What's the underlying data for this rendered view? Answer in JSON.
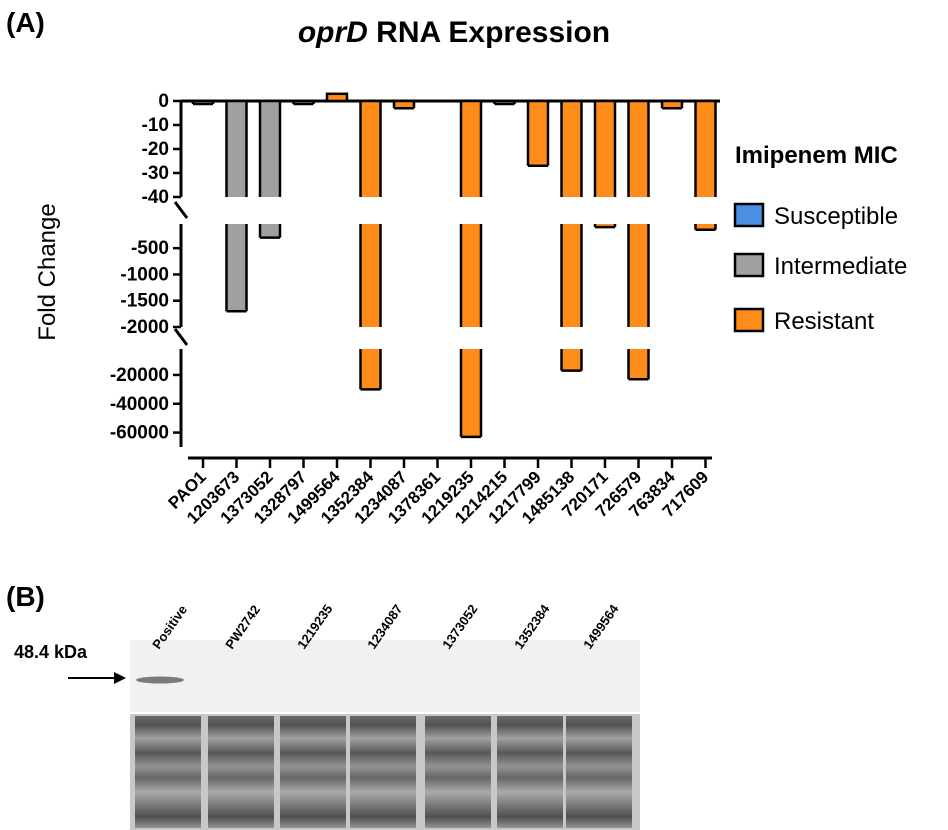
{
  "panel_a": {
    "label": "(A)",
    "title_italic": "oprD",
    "title_rest": " RNA Expression",
    "ylabel": "Fold Change",
    "legend": {
      "title": "Imipenem MIC",
      "items": [
        {
          "label": "Susceptible",
          "color": "#4a90e2"
        },
        {
          "label": "Intermediate",
          "color": "#a0a0a0"
        },
        {
          "label": "Resistant",
          "color": "#ff8c1a"
        }
      ]
    }
  },
  "panel_b": {
    "label": "(B)",
    "marker": "48.4 kDa",
    "lanes": [
      "Positive",
      "PW2742",
      "1219235",
      "1234087",
      "1373052",
      "1352384",
      "1499564"
    ]
  },
  "chart_data": {
    "type": "bar",
    "title": "oprD RNA Expression",
    "ylabel": "Fold Change",
    "categories": [
      "PAO1",
      "1203673",
      "1373052",
      "1328797",
      "1499564",
      "1352384",
      "1234087",
      "1378361",
      "1219235",
      "1214215",
      "1217799",
      "1485138",
      "720171",
      "726579",
      "763834",
      "717609"
    ],
    "values": [
      -1,
      -1700,
      -300,
      -1,
      3,
      -30000,
      -3,
      0,
      -63000,
      -1,
      -27,
      -17000,
      -100,
      -23000,
      -3,
      -150
    ],
    "mic_category": [
      "Intermediate",
      "Intermediate",
      "Intermediate",
      "Intermediate",
      "Resistant",
      "Resistant",
      "Resistant",
      "Resistant",
      "Resistant",
      "Intermediate",
      "Resistant",
      "Resistant",
      "Resistant",
      "Resistant",
      "Resistant",
      "Resistant"
    ],
    "y_axis_segments": [
      {
        "ylim": [
          -40,
          0
        ],
        "ticks": [
          0,
          -10,
          -20,
          -30,
          -40
        ]
      },
      {
        "ylim": [
          -2000,
          -40
        ],
        "ticks": [
          -500,
          -1000,
          -1500,
          -2000
        ]
      },
      {
        "ylim": [
          -70000,
          -2000
        ],
        "ticks": [
          -20000,
          -40000,
          -60000
        ]
      }
    ],
    "colors": {
      "Susceptible": "#4a90e2",
      "Intermediate": "#a0a0a0",
      "Resistant": "#ff8c1a"
    }
  }
}
